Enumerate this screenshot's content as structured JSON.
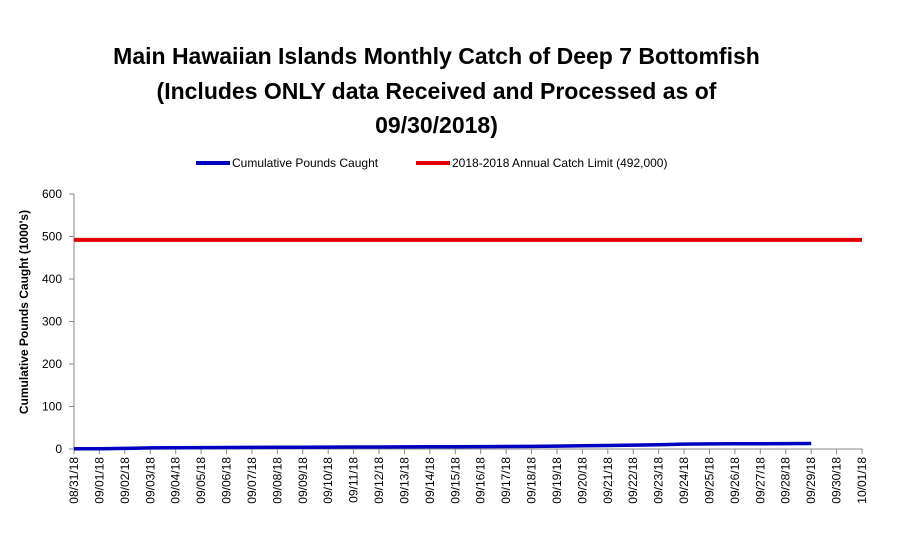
{
  "chart_data": {
    "type": "line",
    "title_lines": [
      "Main Hawaiian Islands Monthly Catch of Deep 7 Bottomfish",
      "(Includes ONLY data Received and Processed as of",
      "09/30/2018)"
    ],
    "xlabel": "",
    "ylabel": "Cumulative Pounds Caught (1000's)",
    "ylim": [
      0,
      600
    ],
    "y_ticks": [
      "0",
      "100",
      "200",
      "300",
      "400",
      "500",
      "600"
    ],
    "categories": [
      "08/31/18",
      "09/01/18",
      "09/02/18",
      "09/03/18",
      "09/04/18",
      "09/05/18",
      "09/06/18",
      "09/07/18",
      "09/08/18",
      "09/09/18",
      "09/10/18",
      "09/11/18",
      "09/12/18",
      "09/13/18",
      "09/14/18",
      "09/15/18",
      "09/16/18",
      "09/17/18",
      "09/18/18",
      "09/19/18",
      "09/20/18",
      "09/21/18",
      "09/22/18",
      "09/23/18",
      "09/24/18",
      "09/25/18",
      "09/26/18",
      "09/27/18",
      "09/28/18",
      "09/29/18",
      "09/30/18",
      "10/01/18"
    ],
    "series": [
      {
        "name": "Cumulative Pounds Caught",
        "color": "#0000c0",
        "values": [
          0.5,
          0.8,
          1.5,
          2.5,
          3,
          3.2,
          3.5,
          3.8,
          4,
          4.2,
          4.4,
          4.6,
          4.8,
          5,
          5.2,
          5.4,
          5.6,
          5.9,
          6.2,
          6.8,
          7.5,
          8.3,
          9.2,
          10,
          11.5,
          12,
          12.3,
          12.5,
          12.7,
          13,
          null,
          null
        ]
      },
      {
        "name": "2018-2018 Annual Catch Limit (492,000)",
        "color": "#e00000",
        "values": [
          492,
          492,
          492,
          492,
          492,
          492,
          492,
          492,
          492,
          492,
          492,
          492,
          492,
          492,
          492,
          492,
          492,
          492,
          492,
          492,
          492,
          492,
          492,
          492,
          492,
          492,
          492,
          492,
          492,
          492,
          492,
          492
        ]
      }
    ],
    "legend_position": "top",
    "grid": false
  }
}
